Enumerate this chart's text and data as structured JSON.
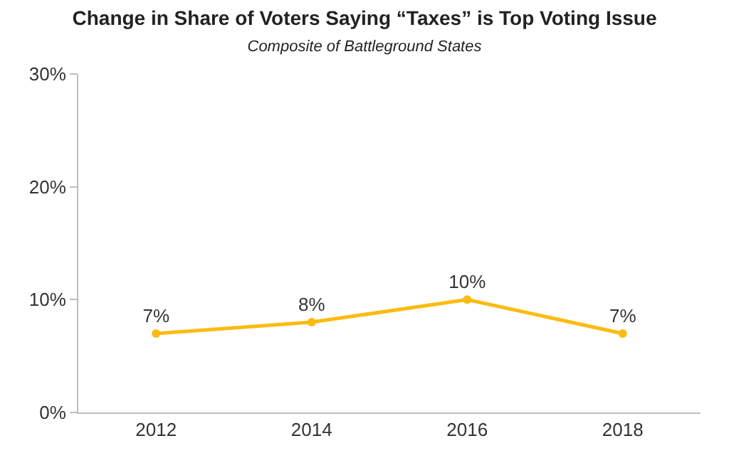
{
  "chart_data": {
    "type": "line",
    "title": "Change in Share of Voters Saying “Taxes” is Top Voting Issue",
    "subtitle": "Composite of Battleground States",
    "categories": [
      "2012",
      "2014",
      "2016",
      "2018"
    ],
    "series": [
      {
        "color": "#fbbb10",
        "values": [
          7,
          8,
          10,
          7
        ],
        "value_labels": [
          "7%",
          "8%",
          "10%",
          "7%"
        ]
      }
    ],
    "ylim": [
      0,
      30
    ],
    "yticks": [
      {
        "value": 0,
        "label": "0%"
      },
      {
        "value": 10,
        "label": "10%"
      },
      {
        "value": 20,
        "label": "20%"
      },
      {
        "value": 30,
        "label": "30%"
      }
    ],
    "grid": false,
    "legend": false,
    "marker": "circle",
    "line_style": "solid"
  }
}
